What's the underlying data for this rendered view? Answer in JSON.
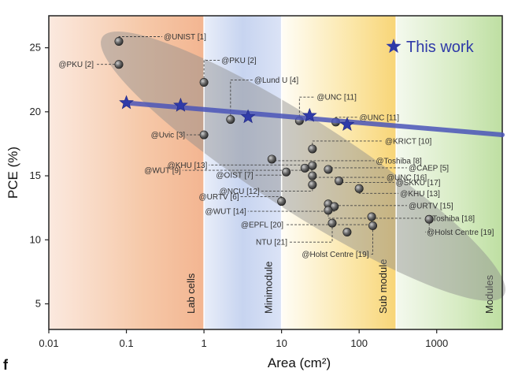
{
  "chart_data": {
    "type": "scatter",
    "xlabel": "Area (cm²)",
    "ylabel": "PCE (%)",
    "xscale": "log",
    "xlim": [
      0.01,
      7000
    ],
    "ylim": [
      3,
      27.5
    ],
    "xticks": [
      {
        "value": 0.01,
        "label": "0.01"
      },
      {
        "value": 0.1,
        "label": "0.1"
      },
      {
        "value": 1,
        "label": "1"
      },
      {
        "value": 10,
        "label": "10"
      },
      {
        "value": 100,
        "label": "100"
      },
      {
        "value": 1000,
        "label": "1000"
      }
    ],
    "yticks": [
      {
        "value": 5,
        "label": "5"
      },
      {
        "value": 10,
        "label": "10"
      },
      {
        "value": 15,
        "label": "15"
      },
      {
        "value": 20,
        "label": "20"
      },
      {
        "value": 25,
        "label": "25"
      }
    ],
    "regions": [
      {
        "name": "Lab cells",
        "range": [
          0.01,
          1
        ],
        "color": "#f6c7a6"
      },
      {
        "name": "Minimodule",
        "range": [
          1,
          10
        ],
        "color": "#c6d3ef"
      },
      {
        "name": "Sub module",
        "range": [
          10,
          300
        ],
        "color": "#f9df8a"
      },
      {
        "name": "Modules",
        "range": [
          300,
          7000
        ],
        "color": "#cde6b5"
      }
    ],
    "legend": {
      "label": "This work",
      "position": "top-right"
    },
    "this_work": {
      "x": [
        0.1,
        0.5,
        3.7,
        23,
        70
      ],
      "y": [
        20.7,
        20.5,
        19.6,
        19.7,
        19.0
      ]
    },
    "trend_line": {
      "x": [
        0.1,
        7000
      ],
      "y": [
        20.7,
        18.2
      ]
    },
    "points": [
      {
        "x": 0.08,
        "y": 25.5,
        "label": "@UNIST [1]"
      },
      {
        "x": 0.08,
        "y": 23.7,
        "label": "@PKU [2]"
      },
      {
        "x": 1.0,
        "y": 22.3,
        "label": "@PKU [2]"
      },
      {
        "x": 2.2,
        "y": 19.4,
        "label": "@Lund U [4]"
      },
      {
        "x": 17,
        "y": 19.3,
        "label": "@UNC [11]"
      },
      {
        "x": 50,
        "y": 19.2,
        "label": "@UNC [11]"
      },
      {
        "x": 1.0,
        "y": 18.2,
        "label": "@Uvic [3]"
      },
      {
        "x": 25,
        "y": 17.1,
        "label": "@KRICT [10]"
      },
      {
        "x": 7.5,
        "y": 16.3,
        "label": "@Toshiba [8]"
      },
      {
        "x": 25,
        "y": 15.8,
        "label": "@WUT [9]"
      },
      {
        "x": 40,
        "y": 15.5,
        "label": "@CAEP [5]"
      },
      {
        "x": 20,
        "y": 15.6,
        "label": "@KHU [13]"
      },
      {
        "x": 11.5,
        "y": 15.3,
        "label": "@OIST [7]"
      },
      {
        "x": 25,
        "y": 15.0,
        "label": "@UNC [16]"
      },
      {
        "x": 55,
        "y": 14.6,
        "label": "@SKKU [17]"
      },
      {
        "x": 25,
        "y": 14.3,
        "label": "@NCU [12]"
      },
      {
        "x": 100,
        "y": 14.0,
        "label": "@KHU [13]"
      },
      {
        "x": 10,
        "y": 13.0,
        "label": "@URTV [6]"
      },
      {
        "x": 40,
        "y": 12.8,
        "label": "@URTV [15]"
      },
      {
        "x": 48,
        "y": 12.6,
        "label": "@WUT [14]"
      },
      {
        "x": 40,
        "y": 12.3,
        "label": "@Toshiba [18]"
      },
      {
        "x": 145,
        "y": 11.8,
        "label": "@EPFL [20]"
      },
      {
        "x": 45,
        "y": 11.3,
        "label": "NTU [21]"
      },
      {
        "x": 800,
        "y": 11.6,
        "label": "@Holst Centre [19]"
      },
      {
        "x": 150,
        "y": 11.1,
        "label": "@Holst Centre [19]"
      },
      {
        "x": 70,
        "y": 10.6,
        "label": ""
      }
    ]
  },
  "corner_label": "f"
}
